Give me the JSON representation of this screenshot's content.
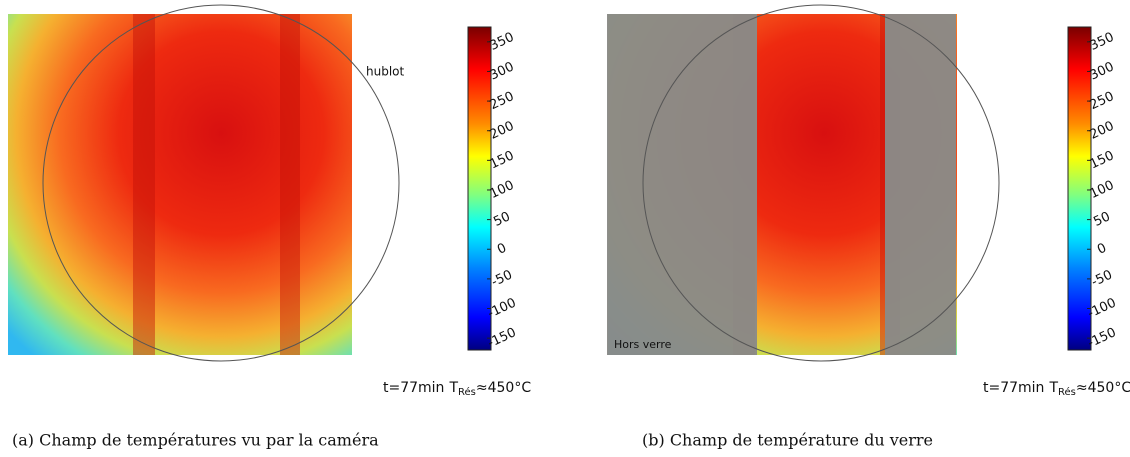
{
  "chart_data": [
    {
      "type": "heatmap",
      "annotation": "hublot",
      "time_label": "t=77min",
      "temp_symbol": "T",
      "temp_subscript": "Rés",
      "temp_value": "≈450°C",
      "zlim": [
        -170,
        375
      ],
      "zticks": [
        350,
        300,
        250,
        200,
        150,
        100,
        50,
        0,
        -50,
        -100,
        -150
      ],
      "caption": "(a) Champ de températures vu par la caméra"
    },
    {
      "type": "heatmap",
      "annotation": "Hors verre",
      "time_label": "t=77min",
      "temp_symbol": "T",
      "temp_subscript": "Rés",
      "temp_value": "≈450°C",
      "zlim": [
        -170,
        375
      ],
      "zticks": [
        350,
        300,
        250,
        200,
        150,
        100,
        50,
        0,
        -50,
        -100,
        -150
      ],
      "caption": "(b) Champ de température du verre"
    }
  ]
}
